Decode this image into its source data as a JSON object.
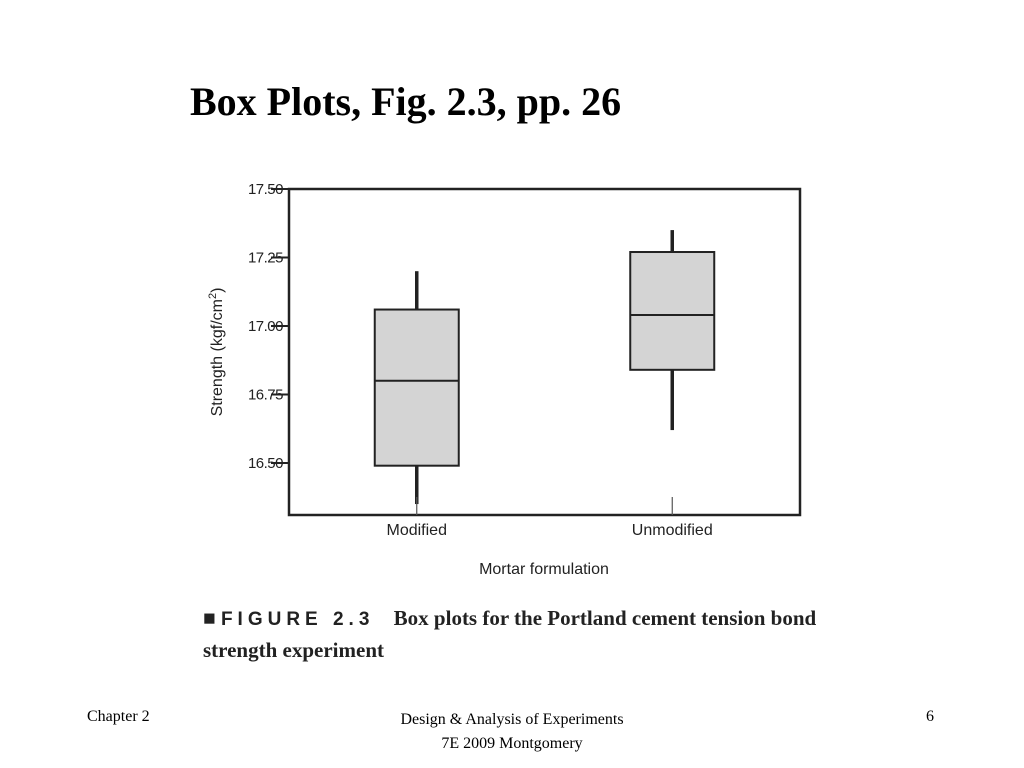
{
  "slide": {
    "title": "Box Plots, Fig. 2.3, pp. 26",
    "caption_marker": "■",
    "caption_label": "FIGURE 2.3",
    "caption_text": "Box plots for the Portland cement tension bond strength experiment"
  },
  "footer": {
    "left": "Chapter 2",
    "center_line1": "Design & Analysis of Experiments",
    "center_line2": "7E 2009 Montgomery",
    "page": "6"
  },
  "chart_data": {
    "type": "box",
    "xlabel": "Mortar formulation",
    "ylabel_main": "Strength (kgf/cm",
    "ylabel_sup": "2",
    "ylabel_end": ")",
    "ylim": [
      16.31,
      17.5
    ],
    "yticks": [
      16.5,
      16.75,
      17.0,
      17.25,
      17.5
    ],
    "ytick_labels": [
      "16.50",
      "16.75",
      "17.00",
      "17.25",
      "17.50"
    ],
    "categories": [
      "Modified",
      "Unmodified"
    ],
    "boxes": [
      {
        "category": "Modified",
        "min": 16.35,
        "q1": 16.49,
        "median": 16.8,
        "q3": 17.06,
        "max": 17.2
      },
      {
        "category": "Unmodified",
        "min": 16.62,
        "q1": 16.84,
        "median": 17.04,
        "q3": 17.27,
        "max": 17.35
      }
    ],
    "box_fill": "#d4d4d4",
    "line_color": "#222222"
  }
}
